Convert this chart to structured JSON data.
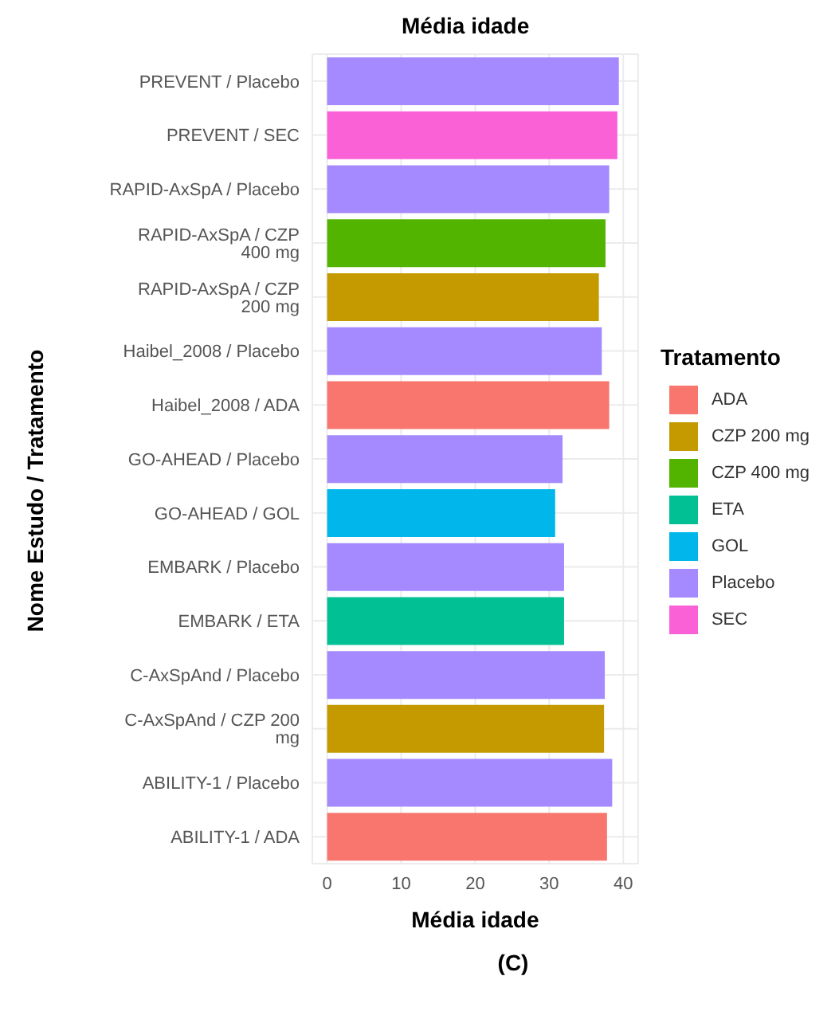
{
  "chart_data": {
    "type": "bar",
    "orientation": "horizontal",
    "stacked": true,
    "title": "Média idade",
    "xlabel": "Média idade",
    "ylabel": "Nome Estudo / Tratamento",
    "legend_title": "Tratamento",
    "legend": "right",
    "grid": true,
    "categories": [
      "PREVENT / Placebo",
      "PREVENT / SEC",
      "RAPID-AxSpA / Placebo",
      "RAPID-AxSpA / CZP 400 mg",
      "RAPID-AxSpA / CZP 200 mg",
      "Haibel_2008 / Placebo",
      "Haibel_2008 / ADA",
      "GO-AHEAD / Placebo",
      "GO-AHEAD / GOL",
      "EMBARK / Placebo",
      "EMBARK / ETA",
      "C-AxSpAnd / Placebo",
      "C-AxSpAnd / CZP 200 mg",
      "ABILITY-1 / Placebo",
      "ABILITY-1 / ADA"
    ],
    "series": [
      {
        "name": "ADA",
        "color": "#f8766d",
        "values": [
          null,
          null,
          null,
          null,
          null,
          null,
          38.1,
          null,
          null,
          null,
          null,
          null,
          null,
          null,
          37.8
        ]
      },
      {
        "name": "CZP 200 mg",
        "color": "#c49a00",
        "values": [
          null,
          null,
          null,
          null,
          36.7,
          null,
          null,
          null,
          null,
          null,
          null,
          null,
          37.4,
          null,
          null
        ]
      },
      {
        "name": "CZP 400 mg",
        "color": "#53b400",
        "values": [
          null,
          null,
          null,
          37.6,
          null,
          null,
          null,
          null,
          null,
          null,
          null,
          null,
          null,
          null,
          null
        ]
      },
      {
        "name": "ETA",
        "color": "#00c094",
        "values": [
          null,
          null,
          null,
          null,
          null,
          null,
          null,
          null,
          null,
          null,
          32.0,
          null,
          null,
          null,
          null
        ]
      },
      {
        "name": "GOL",
        "color": "#00b6eb",
        "values": [
          null,
          null,
          null,
          null,
          null,
          null,
          null,
          null,
          30.8,
          null,
          null,
          null,
          null,
          null,
          null
        ]
      },
      {
        "name": "Placebo",
        "color": "#a58aff",
        "values": [
          39.4,
          null,
          38.1,
          null,
          null,
          37.1,
          null,
          31.8,
          null,
          32.0,
          null,
          37.5,
          null,
          38.5,
          null
        ]
      },
      {
        "name": "SEC",
        "color": "#fb61d7",
        "values": [
          null,
          39.2,
          null,
          null,
          null,
          null,
          null,
          null,
          null,
          null,
          null,
          null,
          null,
          null,
          null
        ]
      }
    ],
    "xlim": [
      -2,
      42
    ],
    "xticks": [
      0,
      10,
      20,
      30,
      40
    ],
    "annotations": [
      "(C)"
    ]
  }
}
